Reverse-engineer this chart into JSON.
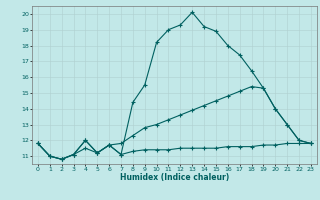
{
  "title": "",
  "xlabel": "Humidex (Indice chaleur)",
  "bg_color": "#c2e8e8",
  "line_color": "#006060",
  "grid_color": "#b0d0d0",
  "xlim": [
    -0.5,
    23.5
  ],
  "ylim": [
    10.5,
    20.5
  ],
  "xticks": [
    0,
    1,
    2,
    3,
    4,
    5,
    6,
    7,
    8,
    9,
    10,
    11,
    12,
    13,
    14,
    15,
    16,
    17,
    18,
    19,
    20,
    21,
    22,
    23
  ],
  "yticks": [
    11,
    12,
    13,
    14,
    15,
    16,
    17,
    18,
    19,
    20
  ],
  "line1_x": [
    0,
    1,
    2,
    3,
    4,
    5,
    6,
    7,
    8,
    9,
    10,
    11,
    12,
    13,
    14,
    15,
    16,
    17,
    18,
    19,
    20,
    21,
    22,
    23
  ],
  "line1_y": [
    11.8,
    11.0,
    10.8,
    11.1,
    12.0,
    11.2,
    11.7,
    11.1,
    14.4,
    15.5,
    18.2,
    19.0,
    19.3,
    20.1,
    19.2,
    18.9,
    18.0,
    17.4,
    16.4,
    15.3,
    14.0,
    13.0,
    12.0,
    11.8
  ],
  "line2_x": [
    0,
    1,
    2,
    3,
    4,
    5,
    6,
    7,
    8,
    9,
    10,
    11,
    12,
    13,
    14,
    15,
    16,
    17,
    18,
    19,
    20,
    21,
    22,
    23
  ],
  "line2_y": [
    11.8,
    11.0,
    10.8,
    11.1,
    12.0,
    11.2,
    11.7,
    11.8,
    12.3,
    12.8,
    13.0,
    13.3,
    13.6,
    13.9,
    14.2,
    14.5,
    14.8,
    15.1,
    15.4,
    15.3,
    14.0,
    13.0,
    12.0,
    11.8
  ],
  "line3_x": [
    0,
    1,
    2,
    3,
    4,
    5,
    6,
    7,
    8,
    9,
    10,
    11,
    12,
    13,
    14,
    15,
    16,
    17,
    18,
    19,
    20,
    21,
    22,
    23
  ],
  "line3_y": [
    11.8,
    11.0,
    10.8,
    11.1,
    11.5,
    11.2,
    11.7,
    11.1,
    11.3,
    11.4,
    11.4,
    11.4,
    11.5,
    11.5,
    11.5,
    11.5,
    11.6,
    11.6,
    11.6,
    11.7,
    11.7,
    11.8,
    11.8,
    11.8
  ]
}
